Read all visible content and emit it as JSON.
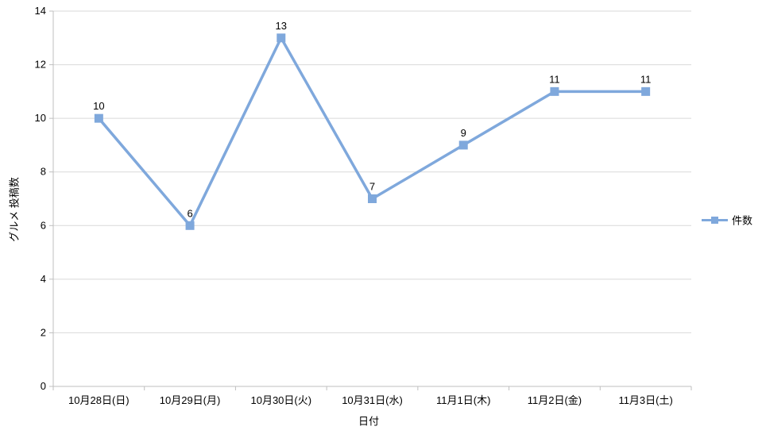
{
  "chart_data": {
    "type": "line",
    "categories": [
      "10月28日(日)",
      "10月29日(月)",
      "10月30日(火)",
      "10月31日(水)",
      "11月1日(木)",
      "11月2日(金)",
      "11月3日(土)"
    ],
    "series": [
      {
        "name": "件数",
        "values": [
          10,
          6,
          13,
          7,
          9,
          11,
          11
        ]
      }
    ],
    "title": "",
    "xlabel": "日付",
    "ylabel": "グルメ 投稿数",
    "ylim": [
      0,
      14
    ],
    "ytick_step": 2,
    "yticks": [
      0,
      2,
      4,
      6,
      8,
      10,
      12,
      14
    ],
    "grid": true,
    "data_labels": true,
    "legend_position": "right",
    "marker": "square",
    "colors": {
      "series": "#7FA8DC",
      "gridline": "#D9D9D9",
      "axis": "#BFBFBF",
      "text": "#000000",
      "background": "#FFFFFF"
    }
  }
}
